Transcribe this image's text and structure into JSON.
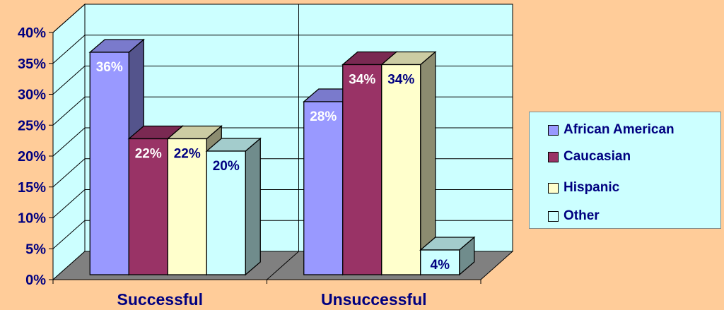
{
  "chart_data": {
    "type": "bar",
    "style": "3d-clustered-column",
    "categories": [
      "Successful",
      "Unsuccessful"
    ],
    "series": [
      {
        "name": "African American",
        "values": [
          36,
          28
        ]
      },
      {
        "name": "Caucasian",
        "values": [
          22,
          34
        ]
      },
      {
        "name": "Hispanic",
        "values": [
          22,
          34
        ]
      },
      {
        "name": "Other",
        "values": [
          20,
          4
        ]
      }
    ],
    "data_labels": [
      [
        "36%",
        "28%"
      ],
      [
        "22%",
        "34%"
      ],
      [
        "22%",
        "34%"
      ],
      [
        "20%",
        "4%"
      ]
    ],
    "y_ticks": [
      "0%",
      "5%",
      "10%",
      "15%",
      "20%",
      "25%",
      "30%",
      "35%",
      "40%"
    ],
    "ylim": [
      0,
      40
    ],
    "grid": true,
    "legend_position": "right",
    "colors": {
      "series": [
        "#9999FF",
        "#993366",
        "#FFFFCC",
        "#CCFFFF"
      ],
      "label_text": [
        "#FFFFFF",
        "#FFFFFF",
        "#000080",
        "#000080"
      ],
      "wall": "#CCFFFF",
      "floor": "#808080",
      "axis_text": "#000080",
      "background": "#FFCC99"
    }
  },
  "legend": {
    "items": [
      {
        "label": "African American",
        "color": "#9999FF"
      },
      {
        "label": "Caucasian",
        "color": "#993366"
      },
      {
        "label": "Hispanic",
        "color": "#FFFFCC"
      },
      {
        "label": "Other",
        "color": "#CCFFFF"
      }
    ]
  }
}
